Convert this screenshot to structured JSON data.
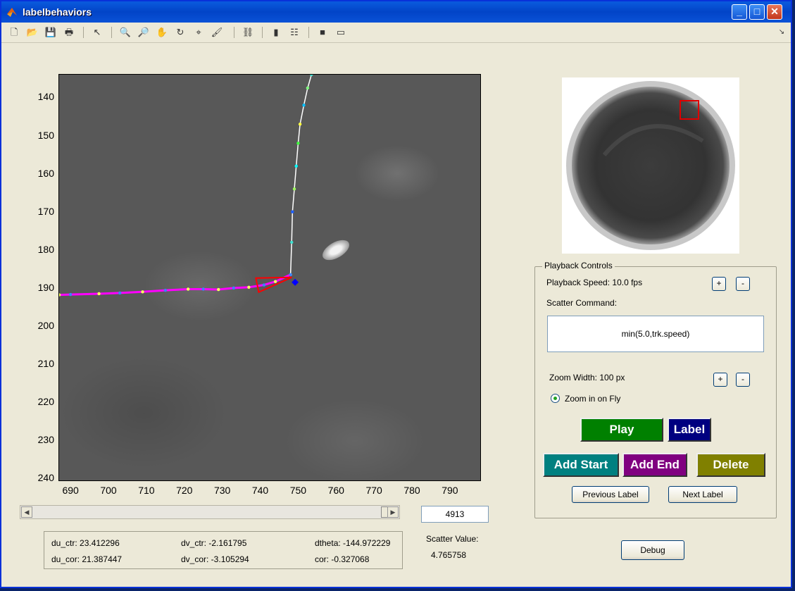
{
  "window": {
    "title": "labelbehaviors",
    "min": "_",
    "max": "□",
    "close": "✕"
  },
  "toolbar": {
    "items": [
      "new-figure",
      "open",
      "save",
      "print",
      "select-pointer",
      "zoom-in",
      "zoom-out",
      "pan",
      "rotate-3d",
      "data-cursor",
      "brush",
      "link-plot",
      "colorbar",
      "legend",
      "hide-plot-tools",
      "show-plot-tools"
    ]
  },
  "plot": {
    "y_ticks": [
      "140",
      "150",
      "160",
      "170",
      "180",
      "190",
      "200",
      "210",
      "220",
      "230",
      "240"
    ],
    "x_ticks": [
      "690",
      "700",
      "710",
      "720",
      "730",
      "740",
      "750",
      "760",
      "770",
      "780",
      "790"
    ]
  },
  "chart_data": {
    "type": "line",
    "title": "",
    "xlim": [
      687,
      798
    ],
    "ylim": [
      240.5,
      134
    ],
    "y_axis_reversed": true,
    "background": "grayscale video frame",
    "series": [
      {
        "color": "#ffffff",
        "style": "line with colored dots",
        "x": [
          753.5,
          752.5,
          751.5,
          750.5,
          750,
          749.5,
          749,
          748.5,
          748.3,
          748
        ],
        "y": [
          134,
          137.5,
          142,
          147,
          152,
          158,
          164,
          170,
          178,
          186.5
        ]
      },
      {
        "color": "#ff00ff",
        "style": "line with dots",
        "x": [
          687,
          690,
          697.5,
          703,
          709,
          715,
          721,
          725,
          729,
          733,
          737,
          741,
          744,
          748
        ],
        "y": [
          191.8,
          191.7,
          191.5,
          191.3,
          191.0,
          190.6,
          190.3,
          190.3,
          190.4,
          190.0,
          189.8,
          189.2,
          188.3,
          186.5
        ]
      }
    ],
    "markers": [
      {
        "shape": "triangle",
        "color": "#ff0000",
        "x": 743.5,
        "y": 188.5
      },
      {
        "shape": "dot",
        "color": "#0000ff",
        "x": 749.2,
        "y": 188.5
      }
    ]
  },
  "controls": {
    "panel_title": "Playback Controls",
    "playback_speed": "Playback Speed: 10.0 fps",
    "plus": "+",
    "minus": "-",
    "scatter_command_label": "Scatter Command:",
    "scatter_command": "min(5.0,trk.speed)",
    "zoom_width": "Zoom Width: 100 px",
    "zoom_on_fly": "Zoom in on Fly",
    "play": "Play",
    "label": "Label",
    "add_start": "Add Start",
    "add_end": "Add End",
    "delete": "Delete",
    "prev_label": "Previous Label",
    "next_label": "Next Label",
    "debug": "Debug",
    "colors": {
      "play": "#008000",
      "label": "#000080",
      "add_start": "#008080",
      "add_end": "#800080",
      "delete": "#808000"
    }
  },
  "frame": "4913",
  "scatter": {
    "label": "Scatter Value:",
    "value": "4.765758"
  },
  "info": {
    "du_ctr": "du_ctr: 23.412296",
    "du_cor": "du_cor: 21.387447",
    "dv_ctr": "dv_ctr: -2.161795",
    "dv_cor": "dv_cor: -3.105294",
    "dtheta": "dtheta: -144.972229",
    "cor": "cor: -0.327068"
  }
}
